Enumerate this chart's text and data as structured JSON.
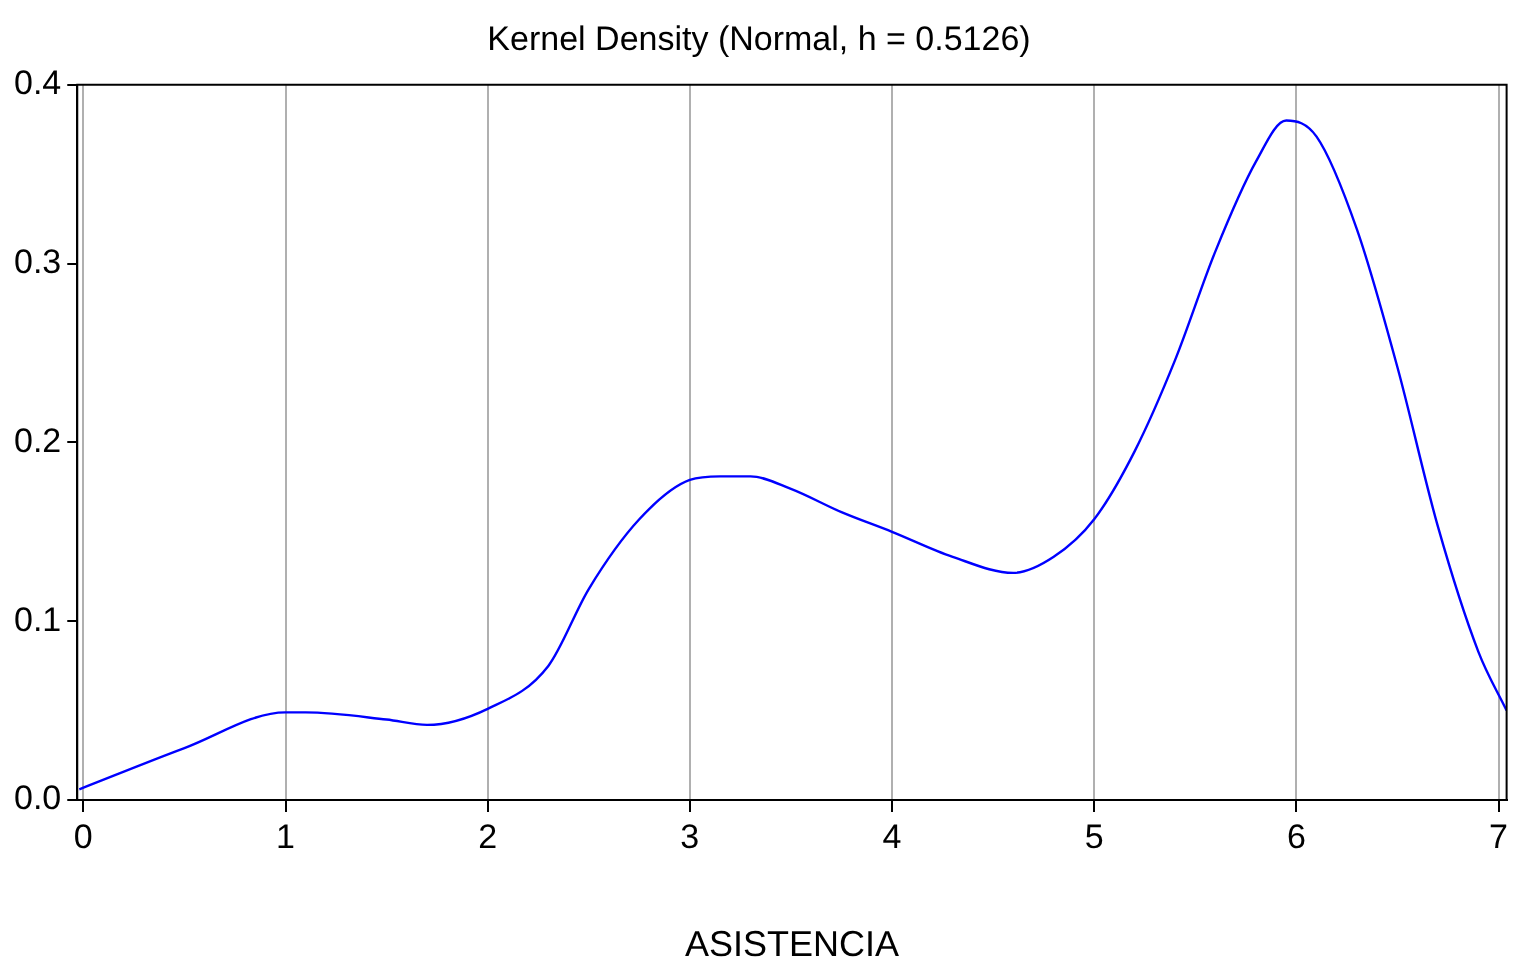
{
  "chart_data": {
    "type": "line",
    "title": "Kernel Density (Normal, h = 0.5126)",
    "xlabel": "ASISTENCIA",
    "xlim": [
      -0.03,
      7.04
    ],
    "xticks": [
      0,
      1,
      2,
      3,
      4,
      5,
      6,
      7
    ],
    "ylim": [
      0,
      0.4
    ],
    "yticks": [
      {
        "value": 0,
        "label": "0.0"
      },
      0.1,
      0.2,
      0.3,
      0.4
    ],
    "grid": "x",
    "marker": "none",
    "line_style": "solid",
    "series": [
      {
        "color": "#0000ff",
        "x": [
          -0.02,
          0.5,
          1.0,
          1.1,
          1.5,
          1.7,
          2.0,
          2.3,
          2.5,
          2.75,
          3.0,
          3.15,
          3.3,
          3.5,
          3.75,
          4.0,
          4.3,
          4.6,
          4.8,
          5.0,
          5.2,
          5.4,
          5.6,
          5.8,
          5.95,
          6.1,
          6.3,
          6.5,
          6.7,
          6.9,
          7.04
        ],
        "values": [
          0.006,
          0.029,
          0.049,
          0.049,
          0.045,
          0.042,
          0.051,
          0.075,
          0.118,
          0.157,
          0.179,
          0.181,
          0.181,
          0.174,
          0.161,
          0.15,
          0.136,
          0.127,
          0.136,
          0.157,
          0.195,
          0.246,
          0.307,
          0.357,
          0.38,
          0.371,
          0.319,
          0.242,
          0.153,
          0.083,
          0.05
        ]
      }
    ]
  }
}
